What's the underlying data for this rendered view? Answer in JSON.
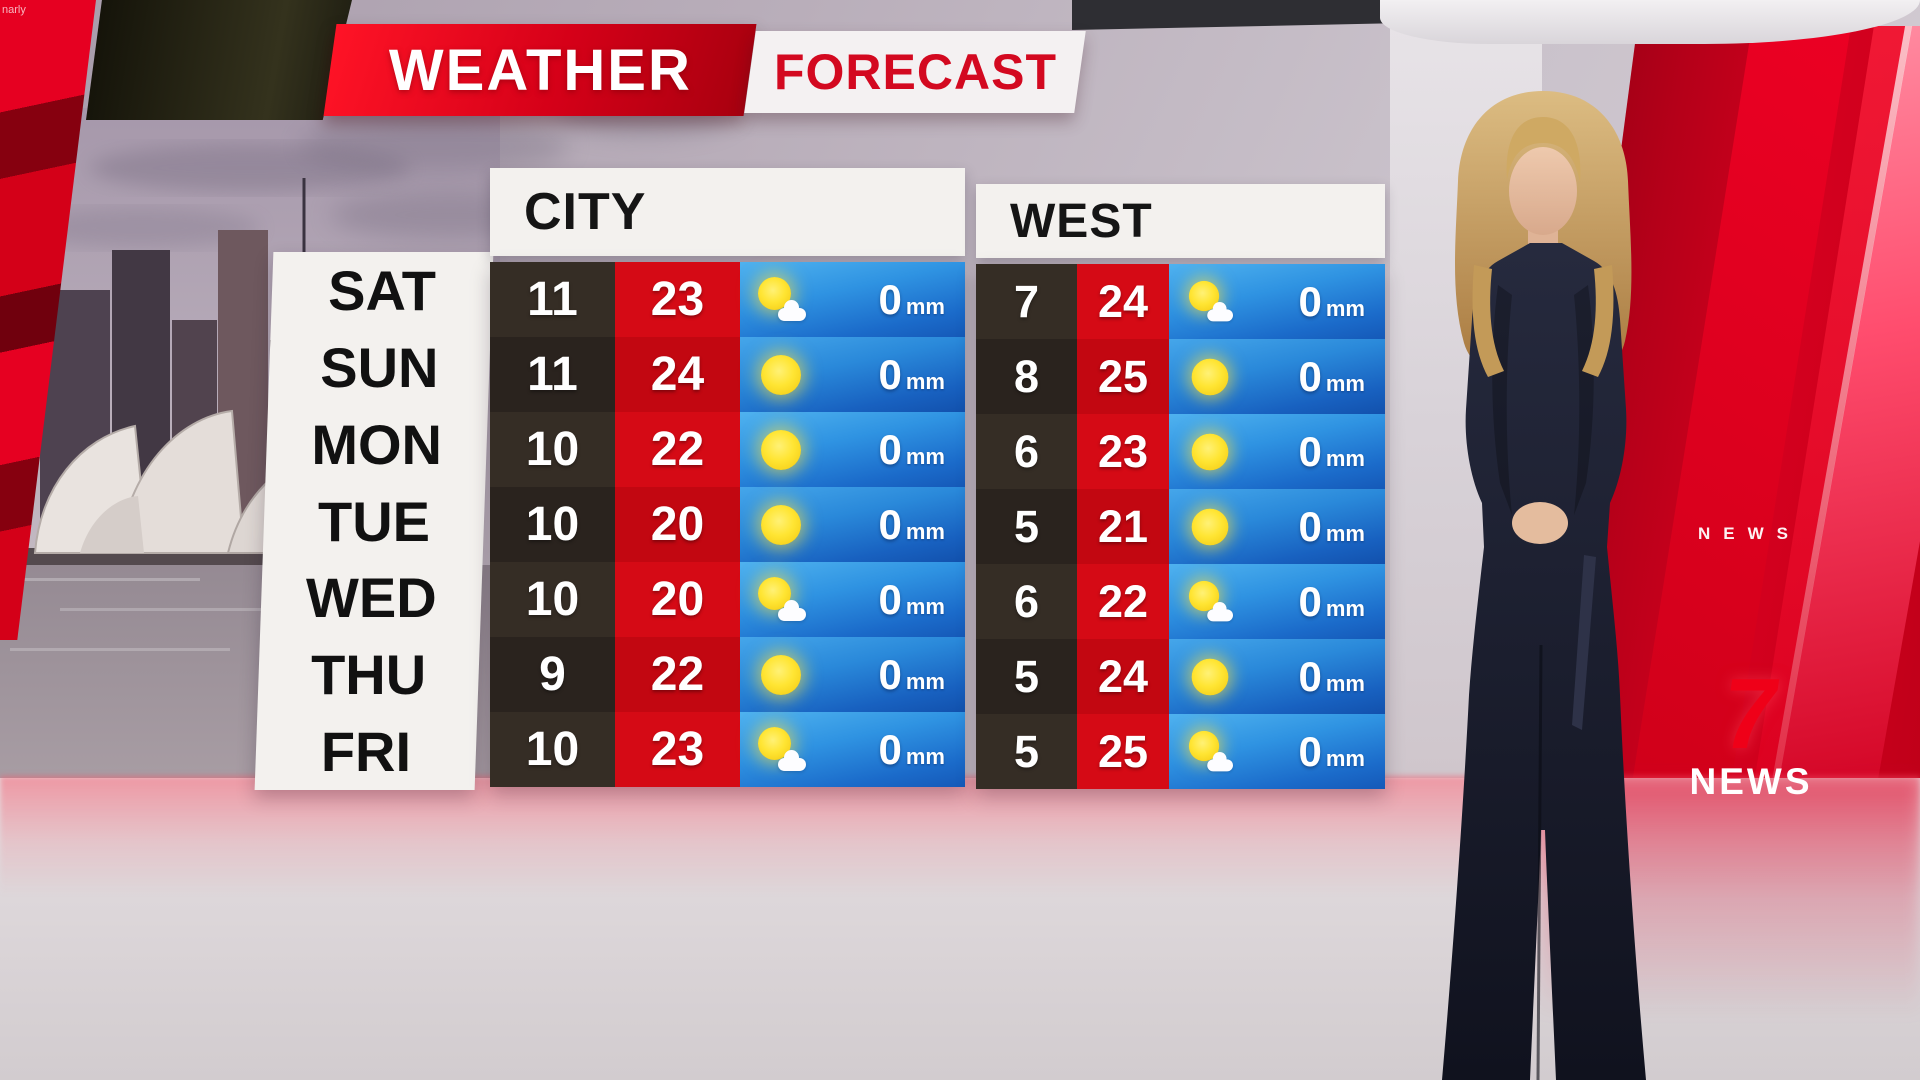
{
  "watermark": "narly",
  "banner": {
    "weather": "WEATHER",
    "forecast": "FORECAST"
  },
  "days": [
    "SAT",
    "SUN",
    "MON",
    "TUE",
    "WED",
    "THU",
    "FRI"
  ],
  "sections": [
    {
      "name": "CITY",
      "rows": [
        {
          "low": "11",
          "high": "23",
          "icon": "partly-cloudy",
          "rain": "0",
          "rain_unit": "mm"
        },
        {
          "low": "11",
          "high": "24",
          "icon": "sunny",
          "rain": "0",
          "rain_unit": "mm"
        },
        {
          "low": "10",
          "high": "22",
          "icon": "sunny",
          "rain": "0",
          "rain_unit": "mm"
        },
        {
          "low": "10",
          "high": "20",
          "icon": "sunny",
          "rain": "0",
          "rain_unit": "mm"
        },
        {
          "low": "10",
          "high": "20",
          "icon": "partly-cloudy",
          "rain": "0",
          "rain_unit": "mm"
        },
        {
          "low": "9",
          "high": "22",
          "icon": "sunny",
          "rain": "0",
          "rain_unit": "mm"
        },
        {
          "low": "10",
          "high": "23",
          "icon": "partly-cloudy",
          "rain": "0",
          "rain_unit": "mm"
        }
      ]
    },
    {
      "name": "WEST",
      "rows": [
        {
          "low": "7",
          "high": "24",
          "icon": "partly-cloudy",
          "rain": "0",
          "rain_unit": "mm"
        },
        {
          "low": "8",
          "high": "25",
          "icon": "sunny",
          "rain": "0",
          "rain_unit": "mm"
        },
        {
          "low": "6",
          "high": "23",
          "icon": "sunny",
          "rain": "0",
          "rain_unit": "mm"
        },
        {
          "low": "5",
          "high": "21",
          "icon": "sunny",
          "rain": "0",
          "rain_unit": "mm"
        },
        {
          "low": "6",
          "high": "22",
          "icon": "partly-cloudy",
          "rain": "0",
          "rain_unit": "mm"
        },
        {
          "low": "5",
          "high": "24",
          "icon": "sunny",
          "rain": "0",
          "rain_unit": "mm"
        },
        {
          "low": "5",
          "high": "25",
          "icon": "partly-cloudy",
          "rain": "0",
          "rain_unit": "mm"
        }
      ]
    }
  ],
  "branding": {
    "seven": "7",
    "news": "NEWS",
    "wall_text": "NEWS"
  },
  "colors": {
    "banner_red": "#d50018",
    "forecast_text_red": "#d30920",
    "low_temp_bg": "#2e2721",
    "high_temp_bg": "#d20a15",
    "rain_blue_top": "#4fb2ef",
    "rain_blue_bottom": "#1559b8",
    "sun_yellow": "#ffe533",
    "panel_white": "#f3f1ee"
  },
  "chart_data": {
    "type": "table",
    "columns": [
      "day",
      "city_low",
      "city_high",
      "city_outlook",
      "city_rain_mm",
      "west_low",
      "west_high",
      "west_outlook",
      "west_rain_mm"
    ],
    "rows": [
      [
        "SAT",
        11,
        23,
        "partly-cloudy",
        0,
        7,
        24,
        "partly-cloudy",
        0
      ],
      [
        "SUN",
        11,
        24,
        "sunny",
        0,
        8,
        25,
        "sunny",
        0
      ],
      [
        "MON",
        10,
        22,
        "sunny",
        0,
        6,
        23,
        "sunny",
        0
      ],
      [
        "TUE",
        10,
        20,
        "sunny",
        0,
        5,
        21,
        "sunny",
        0
      ],
      [
        "WED",
        10,
        20,
        "partly-cloudy",
        0,
        6,
        22,
        "partly-cloudy",
        0
      ],
      [
        "THU",
        9,
        22,
        "sunny",
        0,
        5,
        24,
        "sunny",
        0
      ],
      [
        "FRI",
        10,
        23,
        "partly-cloudy",
        0,
        5,
        25,
        "partly-cloudy",
        0
      ]
    ],
    "title": "WEATHER FORECAST"
  }
}
